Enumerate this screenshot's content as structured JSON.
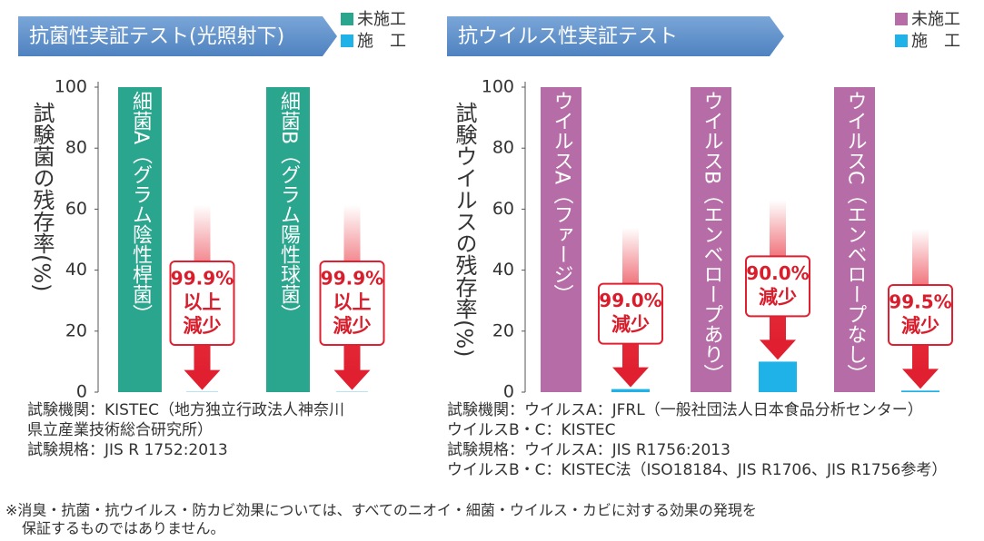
{
  "chart_data": [
    {
      "type": "bar",
      "title": "抗菌性実証テスト(光照射下)",
      "y_label": "試験菌の残存率(%)",
      "categories": [
        "細菌A（グラム陰性桿菌）",
        "細菌B（グラム陽性球菌）"
      ],
      "series": [
        {
          "name": "未施工",
          "color": "#2aa58e",
          "values": [
            100,
            100
          ]
        },
        {
          "name": "施　工",
          "color": "#1eb2e8",
          "values": [
            0.1,
            0.1
          ]
        }
      ],
      "annotations": [
        [
          "99.9%",
          "以上",
          "減少"
        ],
        [
          "99.9%",
          "以上",
          "減少"
        ]
      ],
      "ylim": [
        0,
        100
      ],
      "yticks": [
        0,
        20,
        40,
        60,
        80,
        100
      ],
      "notes": [
        "試験機関：KISTEC（地方独立行政法人神奈川",
        "県立産業技術総合研究所）",
        "試験規格：JIS R 1752:2013"
      ]
    },
    {
      "type": "bar",
      "title": "抗ウイルス性実証テスト",
      "y_label": "試験ウイルスの残存率(%)",
      "categories": [
        "ウイルスA（ファージ）",
        "ウイルスB（エンベロープあり）",
        "ウイルスC（エンベロープなし）"
      ],
      "series": [
        {
          "name": "未施工",
          "color": "#b66ca6",
          "values": [
            100,
            100,
            100
          ]
        },
        {
          "name": "施　工",
          "color": "#1eb2e8",
          "values": [
            1.0,
            10.0,
            0.5
          ]
        }
      ],
      "annotations": [
        [
          "99.0%",
          "減少"
        ],
        [
          "90.0%",
          "減少"
        ],
        [
          "99.5%",
          "減少"
        ]
      ],
      "ylim": [
        0,
        100
      ],
      "yticks": [
        0,
        20,
        40,
        60,
        80,
        100
      ],
      "notes": [
        "試験機関：ウイルスA：JFRL（一般社団法人日本食品分析センター）",
        "ウイルスB・C：KISTEC",
        "試験規格：ウイルスA：JIS R1756:2013",
        "ウイルスB・C：KISTEC法（ISO18184、JIS R1706、JIS R1756参考）"
      ]
    }
  ],
  "footnote": [
    "※消臭・抗菌・抗ウイルス・防カビ効果については、すべてのニオイ・細菌・ウイルス・カビに対する効果の発現を",
    "保証するものではありません。"
  ]
}
